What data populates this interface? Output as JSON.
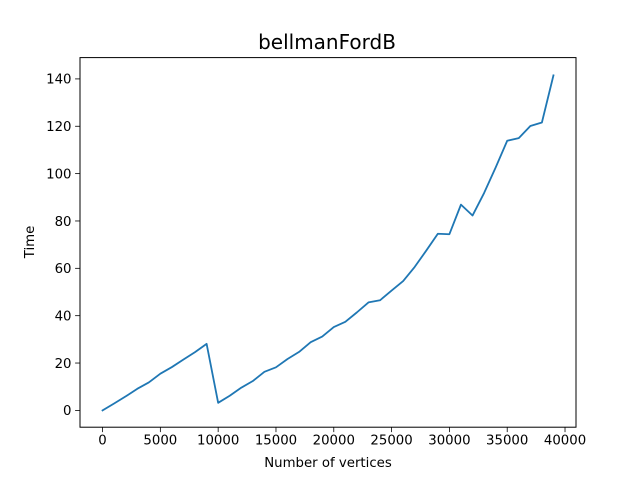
{
  "chart_data": {
    "type": "line",
    "title": "bellmanFordB",
    "xlabel": "Number of vertices",
    "ylabel": "Time",
    "xlim": [
      -1950,
      40950
    ],
    "ylim": [
      -7.1,
      149.0
    ],
    "xticks": [
      0,
      5000,
      10000,
      15000,
      20000,
      25000,
      30000,
      35000,
      40000
    ],
    "xtick_labels": [
      "0",
      "5000",
      "10000",
      "15000",
      "20000",
      "25000",
      "30000",
      "35000",
      "40000"
    ],
    "yticks": [
      0,
      20,
      40,
      60,
      80,
      100,
      120,
      140
    ],
    "ytick_labels": [
      "0",
      "20",
      "40",
      "60",
      "80",
      "100",
      "120",
      "140"
    ],
    "grid": false,
    "legend": "none",
    "series": [
      {
        "color": "#1f77b4",
        "x": [
          0,
          1000,
          2000,
          3000,
          4000,
          5000,
          6000,
          7000,
          8000,
          9000,
          10000,
          11000,
          12000,
          13000,
          14000,
          15000,
          16000,
          17000,
          18000,
          19000,
          20000,
          21000,
          22000,
          23000,
          24000,
          25000,
          26000,
          27000,
          28000,
          29000,
          30000,
          31000,
          32000,
          33000,
          34000,
          35000,
          36000,
          37000,
          38000,
          39000
        ],
        "values": [
          0,
          2.9,
          5.9,
          9.1,
          11.8,
          15.5,
          18.3,
          21.5,
          24.6,
          28.1,
          3.2,
          6.2,
          9.6,
          12.4,
          16.3,
          18.2,
          21.7,
          24.7,
          28.8,
          31.2,
          35.2,
          37.4,
          41.4,
          45.6,
          46.5,
          50.6,
          54.6,
          60.6,
          67.5,
          74.6,
          74.4,
          86.9,
          82.3,
          91.8,
          102.6,
          113.9,
          115.0,
          120.1,
          121.6,
          141.5
        ]
      }
    ]
  }
}
